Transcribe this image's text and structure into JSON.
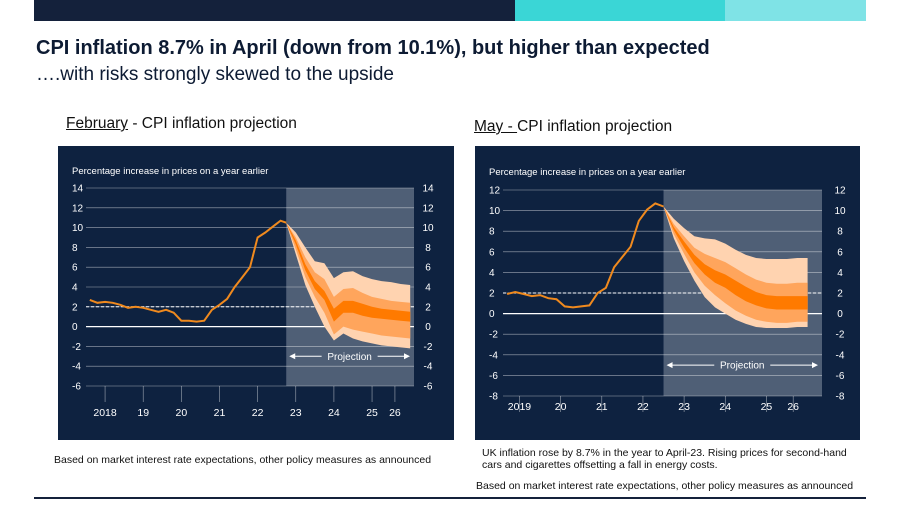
{
  "colors": {
    "background": "#0e2240",
    "shade": "#5a6a80",
    "line": "#f08a1e",
    "band_inner": "#ff7a00",
    "band_mid": "#ffa55c",
    "band_outer": "#ffd3b0",
    "text": "#ffffff",
    "gridline": "#ffffff"
  },
  "header": {
    "title": "CPI inflation 8.7% in April (down from 10.1%), but higher than expected",
    "subtitle": "….with risks strongly skewed to the upside"
  },
  "panels": [
    {
      "heading_underlined": "February",
      "heading_rest": " - CPI inflation projection",
      "note": "Based on market interest rate expectations, other policy measures as announced"
    },
    {
      "heading_underlined": "May - ",
      "heading_rest": "CPI inflation projection",
      "description": "UK inflation rose by 8.7% in the year to April-23. Rising prices for second-hand cars and cigarettes offsetting a fall in energy costs.",
      "note": "Based on market interest rate expectations, other policy measures as announced"
    }
  ],
  "chart_data": [
    {
      "type": "area",
      "ylabel": "Percentage increase in prices on a year earlier",
      "ylim": [
        -6,
        14
      ],
      "yticks": [
        14,
        12,
        10,
        8,
        6,
        4,
        2,
        0,
        -2,
        -4,
        -6
      ],
      "xlim": [
        2017.5,
        2026.1
      ],
      "xticks": [
        {
          "label": "2018",
          "x": 2018.0
        },
        {
          "label": "19",
          "x": 2019.0
        },
        {
          "label": "20",
          "x": 2020.0
        },
        {
          "label": "21",
          "x": 2021.0
        },
        {
          "label": "22",
          "x": 2022.0
        },
        {
          "label": "23",
          "x": 2023.0
        },
        {
          "label": "24",
          "x": 2024.0
        },
        {
          "label": "25",
          "x": 2025.0
        },
        {
          "label": "26",
          "x": 2025.6
        }
      ],
      "target": 2,
      "projection_start": 2022.75,
      "projection_label": "Projection",
      "history": {
        "x": [
          2017.6,
          2017.8,
          2018.0,
          2018.2,
          2018.4,
          2018.6,
          2018.8,
          2019.0,
          2019.2,
          2019.4,
          2019.6,
          2019.8,
          2020.0,
          2020.2,
          2020.4,
          2020.6,
          2020.8,
          2021.0,
          2021.2,
          2021.4,
          2021.6,
          2021.8,
          2022.0,
          2022.2,
          2022.4,
          2022.6,
          2022.75
        ],
        "y": [
          2.7,
          2.4,
          2.5,
          2.4,
          2.2,
          1.9,
          2.0,
          1.9,
          1.7,
          1.5,
          1.7,
          1.4,
          0.6,
          0.6,
          0.5,
          0.6,
          1.7,
          2.2,
          2.8,
          4.0,
          5.0,
          6.0,
          9.0,
          9.5,
          10.1,
          10.7,
          10.5
        ]
      },
      "fan": {
        "x": [
          2022.75,
          2023.0,
          2023.25,
          2023.5,
          2023.75,
          2024.0,
          2024.25,
          2024.5,
          2024.75,
          2025.0,
          2025.25,
          2025.5,
          2025.75,
          2026.0
        ],
        "outer_upper": [
          10.5,
          9.5,
          8.0,
          6.6,
          6.4,
          4.9,
          5.5,
          5.6,
          5.1,
          4.8,
          4.6,
          4.5,
          4.3,
          4.2
        ],
        "mid_upper": [
          10.5,
          9.0,
          7.0,
          5.5,
          4.8,
          3.0,
          3.8,
          3.9,
          3.4,
          3.0,
          2.8,
          2.6,
          2.5,
          2.4
        ],
        "inner_upper": [
          10.5,
          8.7,
          6.3,
          4.6,
          3.6,
          1.8,
          2.6,
          2.6,
          2.3,
          2.0,
          1.8,
          1.7,
          1.6,
          1.5
        ],
        "inner_lower": [
          10.5,
          8.3,
          5.7,
          3.8,
          2.7,
          0.5,
          1.4,
          1.4,
          1.1,
          0.9,
          0.8,
          0.7,
          0.6,
          0.5
        ],
        "mid_lower": [
          10.5,
          7.8,
          5.0,
          3.0,
          1.4,
          -0.8,
          0.0,
          -0.3,
          -0.5,
          -0.7,
          -0.9,
          -1.0,
          -1.1,
          -1.2
        ],
        "outer_lower": [
          10.5,
          7.3,
          4.2,
          2.0,
          0.0,
          -1.4,
          -0.7,
          -1.2,
          -1.5,
          -1.7,
          -1.9,
          -2.0,
          -2.1,
          -2.2
        ]
      }
    },
    {
      "type": "area",
      "ylabel": "Percentage increase in prices on a year earlier",
      "ylim": [
        -8,
        12
      ],
      "yticks": [
        12,
        10,
        8,
        6,
        4,
        2,
        0,
        -2,
        -4,
        -6,
        -8
      ],
      "xlim": [
        2018.6,
        2026.35
      ],
      "xticks": [
        {
          "label": "2019",
          "x": 2019.0
        },
        {
          "label": "20",
          "x": 2020.0
        },
        {
          "label": "21",
          "x": 2021.0
        },
        {
          "label": "22",
          "x": 2022.0
        },
        {
          "label": "23",
          "x": 2023.0
        },
        {
          "label": "24",
          "x": 2024.0
        },
        {
          "label": "25",
          "x": 2025.0
        },
        {
          "label": "26",
          "x": 2025.65
        }
      ],
      "target": 2,
      "projection_start": 2022.5,
      "projection_label": "Projection",
      "history": {
        "x": [
          2018.7,
          2018.9,
          2019.1,
          2019.3,
          2019.5,
          2019.7,
          2019.9,
          2020.1,
          2020.3,
          2020.5,
          2020.7,
          2020.9,
          2021.1,
          2021.3,
          2021.5,
          2021.7,
          2021.9,
          2022.1,
          2022.3,
          2022.5
        ],
        "y": [
          1.9,
          2.1,
          1.9,
          1.7,
          1.8,
          1.5,
          1.4,
          0.7,
          0.6,
          0.7,
          0.8,
          2.0,
          2.5,
          4.5,
          5.5,
          6.5,
          9.0,
          10.1,
          10.7,
          10.4
        ]
      },
      "fan": {
        "x": [
          2022.5,
          2022.75,
          2023.0,
          2023.25,
          2023.5,
          2023.75,
          2024.0,
          2024.25,
          2024.5,
          2024.75,
          2025.0,
          2025.25,
          2025.5,
          2025.75,
          2026.0
        ],
        "outer_upper": [
          10.4,
          9.2,
          8.3,
          7.5,
          7.3,
          7.2,
          6.8,
          6.2,
          5.7,
          5.4,
          5.3,
          5.3,
          5.3,
          5.4,
          5.4
        ],
        "mid_upper": [
          10.4,
          8.7,
          7.5,
          6.4,
          5.8,
          5.4,
          5.0,
          4.4,
          3.8,
          3.3,
          3.0,
          2.9,
          2.9,
          3.0,
          3.0
        ],
        "inner_upper": [
          10.4,
          8.4,
          7.0,
          5.7,
          4.8,
          4.2,
          3.8,
          3.2,
          2.6,
          2.1,
          1.8,
          1.7,
          1.7,
          1.7,
          1.7
        ],
        "inner_lower": [
          10.4,
          8.1,
          6.4,
          4.9,
          3.8,
          3.0,
          2.5,
          1.8,
          1.2,
          0.8,
          0.5,
          0.4,
          0.4,
          0.4,
          0.4
        ],
        "mid_lower": [
          10.4,
          7.7,
          5.8,
          4.0,
          2.7,
          1.8,
          1.0,
          0.3,
          -0.2,
          -0.6,
          -0.8,
          -0.9,
          -0.9,
          -0.8,
          -0.8
        ],
        "outer_lower": [
          10.4,
          7.3,
          5.1,
          3.2,
          1.6,
          0.6,
          0.0,
          -0.6,
          -1.0,
          -1.3,
          -1.4,
          -1.4,
          -1.4,
          -1.3,
          -1.3
        ]
      }
    }
  ]
}
